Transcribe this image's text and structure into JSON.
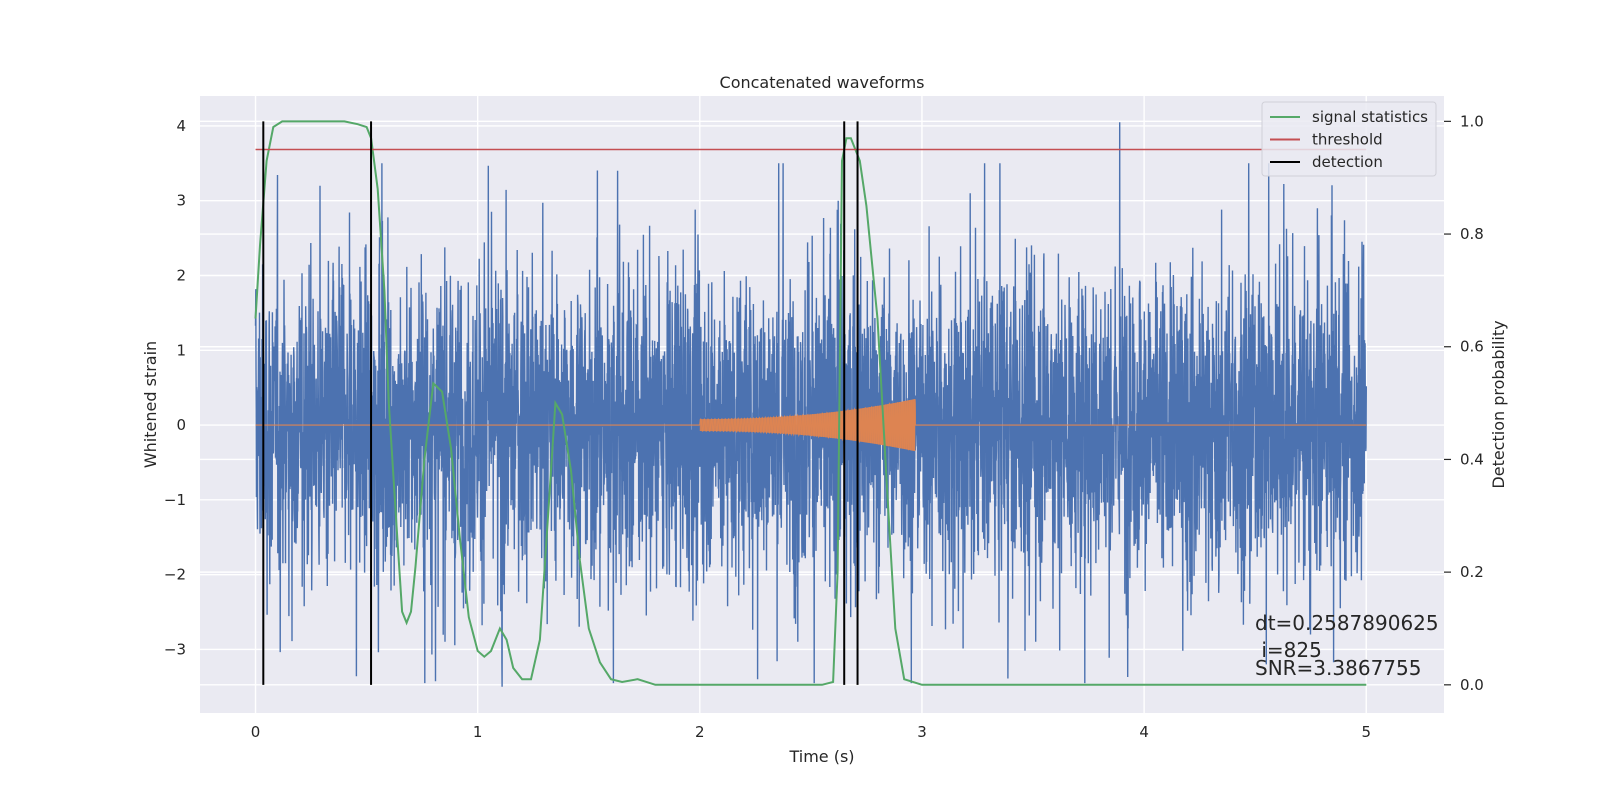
{
  "chart_data": {
    "type": "line",
    "title": "Concatenated waveforms",
    "xlabel": "Time (s)",
    "ylabel": "Whitened strain",
    "ylabel_right": "Detection probability",
    "xlim": [
      -0.25,
      5.35
    ],
    "ylim": [
      -3.85,
      4.4
    ],
    "ylim_right": [
      -0.05,
      1.045
    ],
    "x_ticks": [
      0,
      1,
      2,
      3,
      4,
      5
    ],
    "x_tick_labels": [
      "0",
      "1",
      "2",
      "3",
      "4",
      "5"
    ],
    "y_ticks": [
      -3,
      -2,
      -1,
      0,
      1,
      2,
      3,
      4
    ],
    "y_tick_labels": [
      "−3",
      "−2",
      "−1",
      "0",
      "1",
      "2",
      "3",
      "4"
    ],
    "y_right_ticks": [
      0.0,
      0.2,
      0.4,
      0.6,
      0.8,
      1.0
    ],
    "y_right_tick_labels": [
      "0.0",
      "0.2",
      "0.4",
      "0.6",
      "0.8",
      "1.0"
    ],
    "grid": true,
    "legend_position": "top-right",
    "legend": [
      {
        "label": "signal statistics",
        "color": "#55a868"
      },
      {
        "label": "threshold",
        "color": "#c44e52"
      },
      {
        "label": "detection",
        "color": "#000000"
      }
    ],
    "noise": {
      "color": "#4c72b0",
      "x_range": [
        0,
        5
      ],
      "typical_amplitude": 1.0,
      "peaks": [
        [
          0.29,
          3.2
        ],
        [
          1.63,
          3.4
        ],
        [
          3.89,
          4.05
        ],
        [
          2.65,
          3.6
        ],
        [
          4.78,
          2.9
        ],
        [
          1.11,
          -3.5
        ],
        [
          2.26,
          -3.4
        ],
        [
          4.55,
          -3.2
        ]
      ]
    },
    "injected_signal": {
      "color": "#dd8452",
      "x_range": [
        2.0,
        2.97
      ],
      "start_amplitude": 0.08,
      "end_amplitude": 0.35
    },
    "signal_statistics": {
      "color": "#55a868",
      "x": [
        0.0,
        0.02,
        0.05,
        0.08,
        0.12,
        0.2,
        0.3,
        0.4,
        0.46,
        0.5,
        0.52,
        0.55,
        0.58,
        0.6,
        0.64,
        0.66,
        0.68,
        0.7,
        0.72,
        0.76,
        0.8,
        0.84,
        0.88,
        0.92,
        0.96,
        1.0,
        1.03,
        1.06,
        1.1,
        1.13,
        1.16,
        1.2,
        1.24,
        1.28,
        1.32,
        1.35,
        1.38,
        1.42,
        1.46,
        1.5,
        1.55,
        1.6,
        1.65,
        1.72,
        1.8,
        2.0,
        2.3,
        2.55,
        2.6,
        2.62,
        2.64,
        2.66,
        2.68,
        2.72,
        2.75,
        2.8,
        2.85,
        2.88,
        2.92,
        3.0,
        3.5,
        4.0,
        4.5,
        5.0
      ],
      "y": [
        0.65,
        0.78,
        0.93,
        0.99,
        1.0,
        1.0,
        1.0,
        1.0,
        0.995,
        0.99,
        0.97,
        0.88,
        0.7,
        0.5,
        0.25,
        0.13,
        0.11,
        0.13,
        0.21,
        0.4,
        0.535,
        0.52,
        0.42,
        0.26,
        0.12,
        0.06,
        0.05,
        0.06,
        0.1,
        0.08,
        0.03,
        0.01,
        0.01,
        0.08,
        0.32,
        0.5,
        0.48,
        0.38,
        0.22,
        0.1,
        0.04,
        0.01,
        0.005,
        0.01,
        0.0,
        0.0,
        0.0,
        0.0,
        0.005,
        0.2,
        0.93,
        0.97,
        0.97,
        0.93,
        0.85,
        0.65,
        0.3,
        0.1,
        0.01,
        0.0,
        0.0,
        0.0,
        0.0,
        0.0
      ]
    },
    "threshold": {
      "color": "#c44e52",
      "value_right": 0.95,
      "x_range": [
        0,
        5
      ]
    },
    "detections": {
      "color": "#000000",
      "x": [
        0.035,
        0.52,
        2.65,
        2.71
      ]
    },
    "annotations": [
      "dt=0.2587890625",
      " i=825",
      "SNR=3.3867755"
    ]
  }
}
